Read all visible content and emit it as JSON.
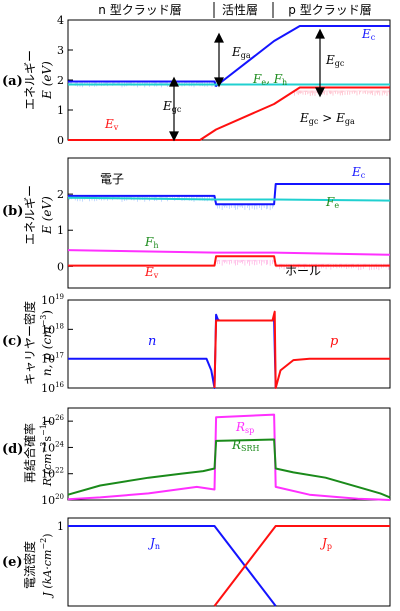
{
  "regions": [
    "n 型クラッド層",
    "活性層",
    "p 型クラッド層"
  ],
  "chart_data": [
    {
      "id": "a",
      "type": "line",
      "panel_label": "(a)",
      "ylabel": "エネルギー",
      "yvar": "E (eV)",
      "ylim": [
        0,
        4
      ],
      "yticks": [
        "0",
        "1",
        "2",
        "3",
        "4"
      ],
      "ytick_values": [
        0,
        1,
        2,
        3,
        4
      ],
      "series": [
        {
          "name": "E_c",
          "color": "#1414ff",
          "x": [
            0,
            0.455,
            0.46,
            0.64,
            0.72,
            1.0
          ],
          "y": [
            1.95,
            1.95,
            1.8,
            3.3,
            3.8,
            3.8
          ]
        },
        {
          "name": "F_e, F_h",
          "color": "#20d0d0",
          "x": [
            0,
            1.0
          ],
          "y": [
            1.85,
            1.85
          ]
        },
        {
          "name": "E_v",
          "color": "#ff1010",
          "x": [
            0,
            0.41,
            0.46,
            0.64,
            0.72,
            1.0
          ],
          "y": [
            0.0,
            0.0,
            0.35,
            1.2,
            1.75,
            1.75
          ]
        }
      ],
      "annotations": {
        "Ec": "E",
        "Ec_sub": "c",
        "Ev": "E",
        "Ev_sub": "v",
        "Ega": "E",
        "Ega_sub": "ga",
        "Egc_left": "E",
        "Egc_left_sub": "gc",
        "Egc_right": "E",
        "Egc_right_sub": "gc",
        "Fe": "F",
        "Fe_sub": "e",
        "Fh": "F",
        "Fh_sub": "h",
        "ineq_a": "E",
        "ineq_a_sub": "gc",
        "ineq_gt": " > ",
        "ineq_b": "E",
        "ineq_b_sub": "ga"
      }
    },
    {
      "id": "b",
      "type": "line",
      "panel_label": "(b)",
      "ylabel": "エネルギー",
      "yvar": "E (eV)",
      "ylim": [
        -0.6,
        3.0
      ],
      "yticks": [
        "0",
        "1",
        "2"
      ],
      "ytick_values": [
        0,
        1,
        2
      ],
      "series": [
        {
          "name": "E_c",
          "color": "#1414ff",
          "x": [
            0,
            0.455,
            0.46,
            0.64,
            0.645,
            1.0
          ],
          "y": [
            1.95,
            1.95,
            1.72,
            1.72,
            2.28,
            2.28
          ]
        },
        {
          "name": "F_e",
          "color": "#20d0d0",
          "x": [
            0,
            0.46,
            0.64,
            1.0
          ],
          "y": [
            1.9,
            1.85,
            1.85,
            1.82
          ]
        },
        {
          "name": "F_h",
          "color": "#ff30ff",
          "x": [
            0,
            0.46,
            0.64,
            1.0
          ],
          "y": [
            0.45,
            0.38,
            0.38,
            0.32
          ]
        },
        {
          "name": "E_v",
          "color": "#ff1010",
          "x": [
            0,
            0.455,
            0.46,
            0.64,
            0.645,
            1.0
          ],
          "y": [
            0.02,
            0.02,
            0.28,
            0.28,
            0.02,
            0.02
          ]
        }
      ],
      "annotations": {
        "electron": "電子",
        "hole": "ホール",
        "Ec": "E",
        "Ec_sub": "c",
        "Ev": "E",
        "Ev_sub": "v",
        "Fe": "F",
        "Fe_sub": "e",
        "Fh": "F",
        "Fh_sub": "h"
      }
    },
    {
      "id": "c",
      "type": "line",
      "panel_label": "(c)",
      "ylabel": "キャリヤー密度",
      "yvar": "n, p (cm",
      "yvar_exp": "−3",
      "yvar_close": ")",
      "yscale": "log",
      "ylim": [
        16,
        19
      ],
      "yticks_base": "10",
      "yticks_exp": [
        "16",
        "17",
        "18",
        "19"
      ],
      "ytick_values": [
        16,
        17,
        18,
        19
      ],
      "series": [
        {
          "name": "n",
          "color": "#1414ff",
          "x": [
            0,
            0.43,
            0.445,
            0.455,
            0.46,
            0.465,
            0.47,
            0.64,
            0.645
          ],
          "y": [
            17.0,
            17.0,
            16.6,
            16.0,
            18.5,
            18.35,
            18.3,
            18.3,
            16.0
          ]
        },
        {
          "name": "p",
          "color": "#ff1010",
          "x": [
            0.455,
            0.46,
            0.635,
            0.642,
            0.645,
            0.66,
            0.7,
            0.75,
            1.0
          ],
          "y": [
            16.0,
            18.3,
            18.3,
            18.6,
            16.0,
            16.6,
            16.95,
            17.0,
            17.0
          ]
        }
      ],
      "annotations": {
        "n": "n",
        "p": "p"
      }
    },
    {
      "id": "d",
      "type": "line",
      "panel_label": "(d)",
      "ylabel": "再結合確率",
      "yvar": "R (cm",
      "yvar_exp": "−3",
      "yvar_mid": "s",
      "yvar_exp2": "−1",
      "yvar_close": ")",
      "yscale": "log",
      "ylim": [
        20,
        27
      ],
      "yticks_base": "10",
      "yticks_exp": [
        "20",
        "22",
        "24",
        "26"
      ],
      "ytick_values": [
        20,
        22,
        24,
        26
      ],
      "series": [
        {
          "name": "R_sp",
          "color": "#ff30ff",
          "x": [
            0.0,
            0.1,
            0.25,
            0.4,
            0.455,
            0.46,
            0.64,
            0.645,
            0.75,
            0.9,
            1.0
          ],
          "y": [
            20.05,
            20.2,
            20.5,
            21.0,
            20.8,
            26.3,
            26.5,
            21.0,
            20.4,
            20.1,
            20.0
          ]
        },
        {
          "name": "R_SRH",
          "color": "#1a8a1a",
          "x": [
            0.0,
            0.1,
            0.25,
            0.35,
            0.42,
            0.455,
            0.46,
            0.64,
            0.645,
            0.7,
            0.8,
            0.9,
            0.97,
            1.0
          ],
          "y": [
            20.4,
            21.1,
            21.7,
            22.0,
            22.2,
            22.4,
            24.5,
            24.6,
            22.4,
            22.1,
            21.7,
            21.0,
            20.5,
            20.2
          ]
        }
      ],
      "annotations": {
        "Rsp": "R",
        "Rsp_sub": "sp",
        "Rsrh": "R",
        "Rsrh_sub": "SRH"
      }
    },
    {
      "id": "e",
      "type": "line",
      "panel_label": "(e)",
      "ylabel": "電流密度",
      "yvar": "J (kA·cm",
      "yvar_exp": "−2",
      "yvar_close": ")",
      "ylim": [
        0,
        1.1
      ],
      "yticks": [
        "1"
      ],
      "ytick_values": [
        1
      ],
      "series": [
        {
          "name": "J_n",
          "color": "#1414ff",
          "x": [
            0,
            0.455,
            0.645
          ],
          "y": [
            1.0,
            1.0,
            0.0
          ]
        },
        {
          "name": "J_p",
          "color": "#ff1010",
          "x": [
            0.455,
            0.645,
            1.0
          ],
          "y": [
            0.0,
            1.0,
            1.0
          ]
        }
      ],
      "annotations": {
        "Jn": "J",
        "Jn_sub": "n",
        "Jp": "J",
        "Jp_sub": "p"
      }
    }
  ]
}
